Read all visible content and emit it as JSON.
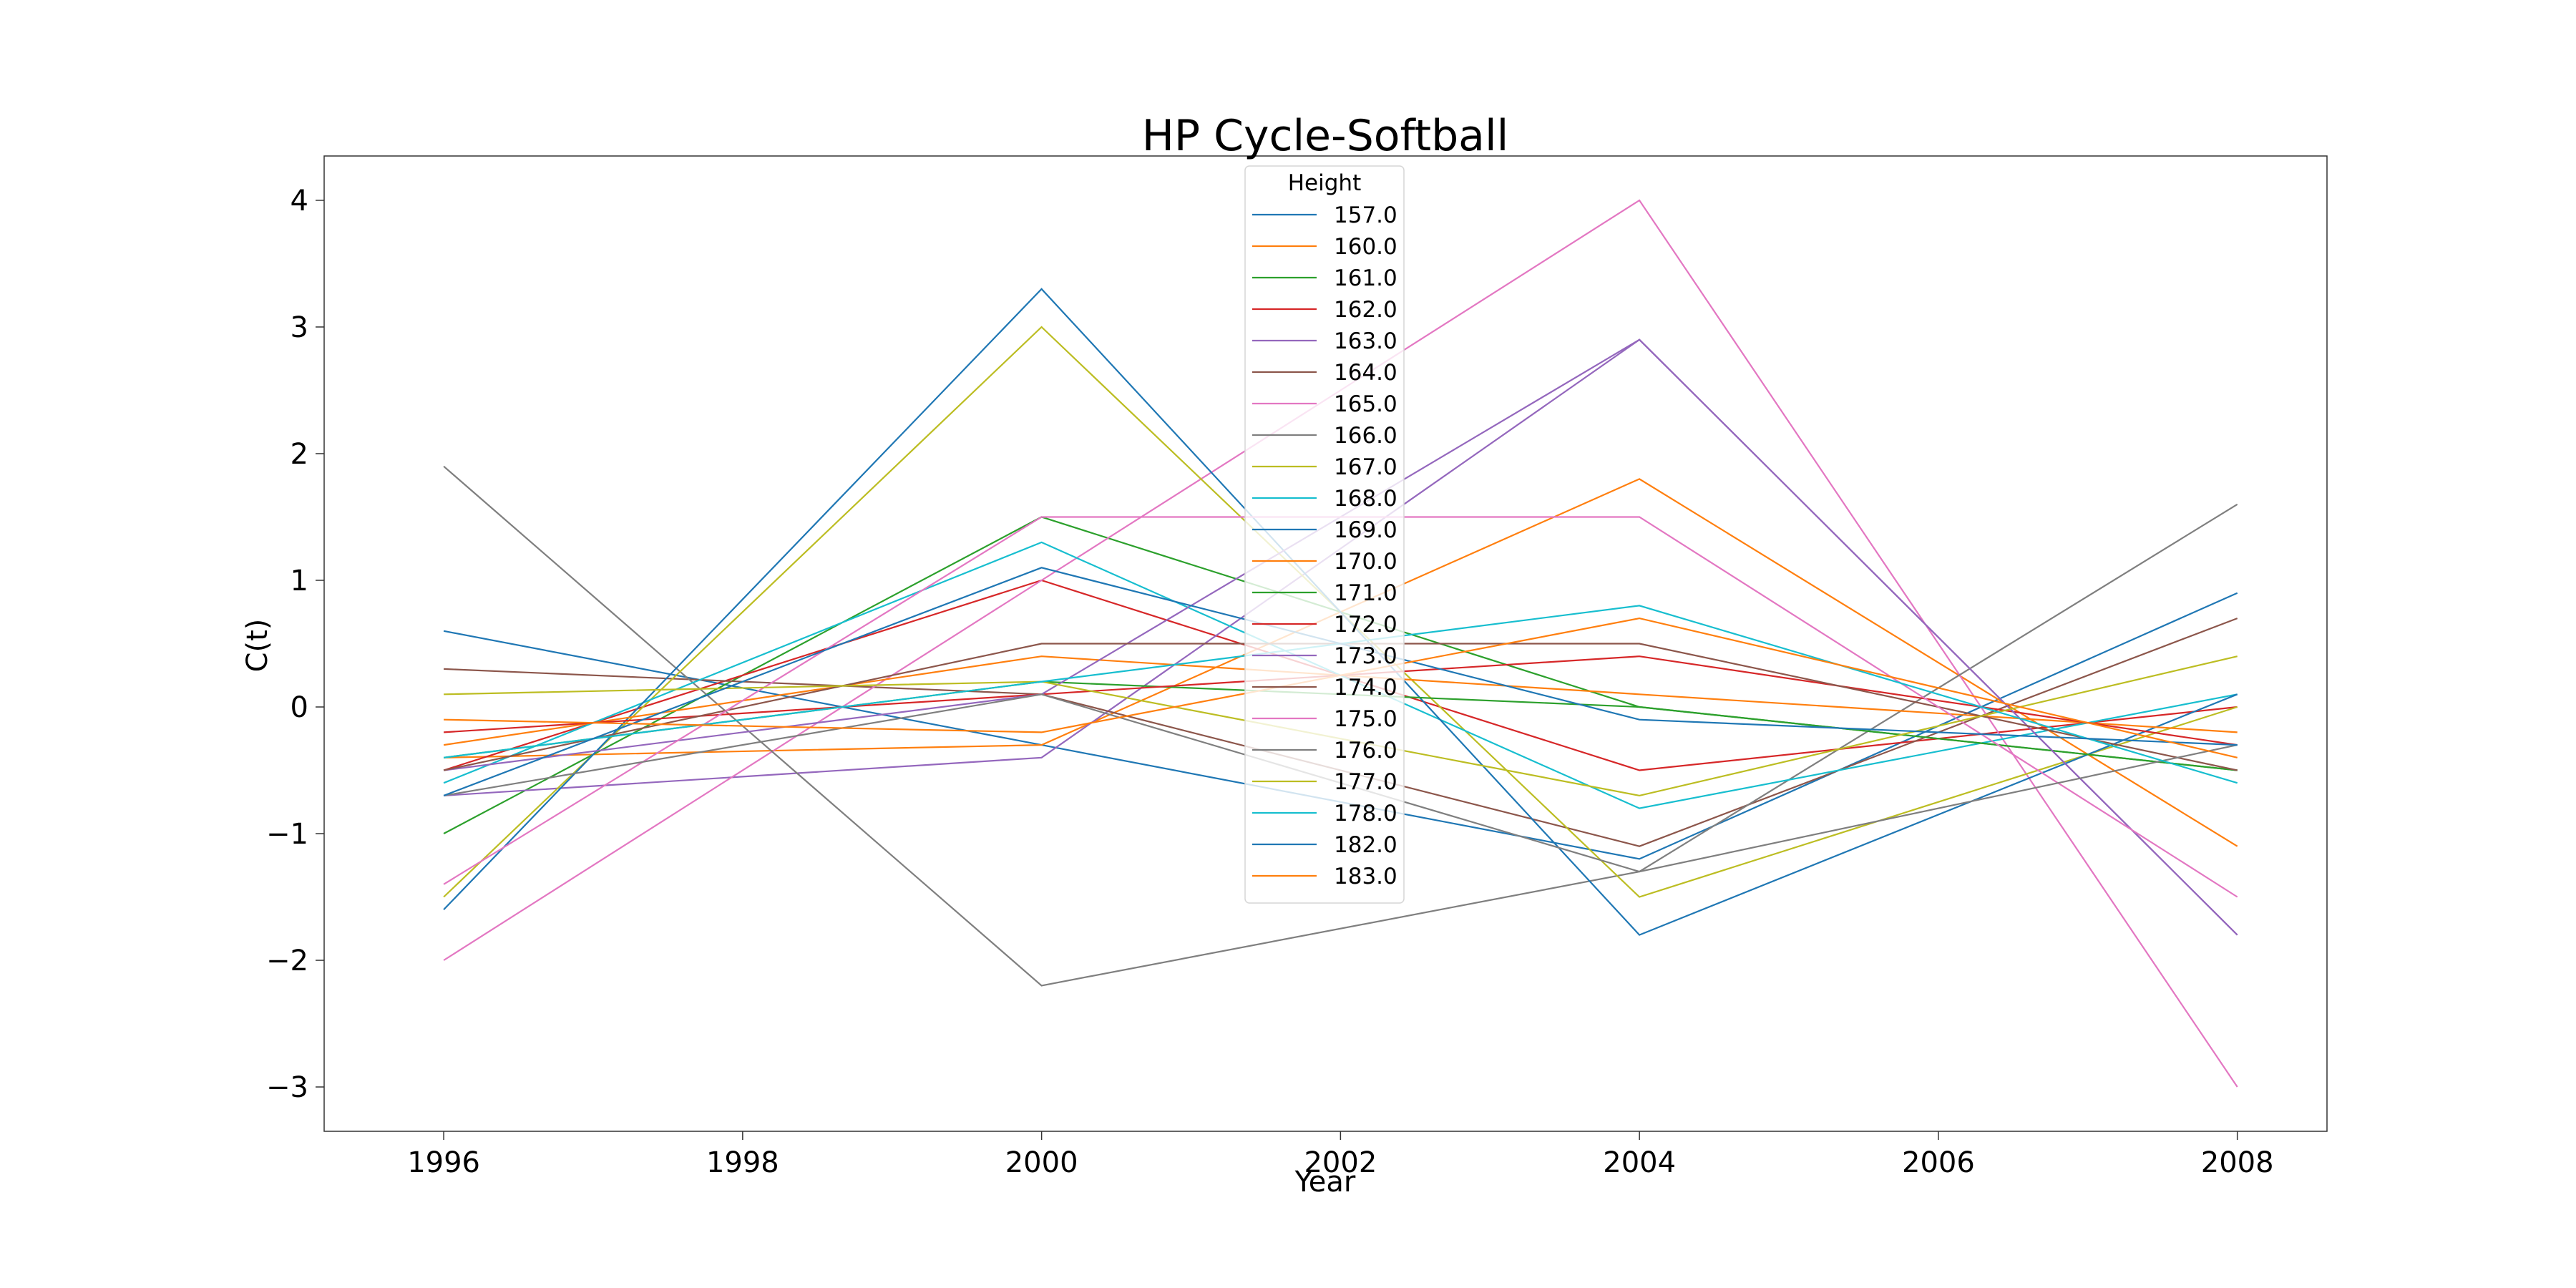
{
  "chart_data": {
    "type": "line",
    "title": "HP Cycle-Softball",
    "xlabel": "Year",
    "ylabel": "C(t)",
    "x": [
      1996,
      2000,
      2004,
      2008
    ],
    "xlim": [
      1995.2,
      2008.6
    ],
    "ylim": [
      -3.35,
      4.35
    ],
    "xticks": [
      1996,
      1998,
      2000,
      2002,
      2004,
      2006,
      2008
    ],
    "yticks": [
      -3,
      -2,
      -1,
      0,
      1,
      2,
      3,
      4
    ],
    "grid": false,
    "legend": {
      "title": "Height",
      "placement": "top-center"
    },
    "series": [
      {
        "name": "157.0",
        "color": "#1f77b4",
        "values": [
          0.6,
          -0.3,
          -1.2,
          0.9
        ]
      },
      {
        "name": "160.0",
        "color": "#ff7f0e",
        "values": [
          -0.4,
          -0.3,
          1.8,
          -1.1
        ]
      },
      {
        "name": "161.0",
        "color": "#2ca02c",
        "values": [
          -1.0,
          1.5,
          0.0,
          -0.5
        ]
      },
      {
        "name": "162.0",
        "color": "#d62728",
        "values": [
          -0.5,
          1.0,
          -0.5,
          0.0
        ]
      },
      {
        "name": "163.0",
        "color": "#9467bd",
        "values": [
          -0.7,
          -0.4,
          2.9,
          -1.8
        ]
      },
      {
        "name": "164.0",
        "color": "#8c564b",
        "values": [
          0.3,
          0.1,
          -1.1,
          0.7
        ]
      },
      {
        "name": "165.0",
        "color": "#e377c2",
        "values": [
          -2.0,
          1.0,
          4.0,
          -3.0
        ]
      },
      {
        "name": "166.0",
        "color": "#7f7f7f",
        "values": [
          1.9,
          -2.2,
          -1.3,
          1.6
        ]
      },
      {
        "name": "167.0",
        "color": "#bcbd22",
        "values": [
          -1.5,
          3.0,
          -1.5,
          0.0
        ]
      },
      {
        "name": "168.0",
        "color": "#17becf",
        "values": [
          -0.6,
          1.3,
          -0.8,
          0.1
        ]
      },
      {
        "name": "169.0",
        "color": "#1f77b4",
        "values": [
          -1.6,
          3.3,
          -1.8,
          0.1
        ]
      },
      {
        "name": "170.0",
        "color": "#ff7f0e",
        "values": [
          -0.3,
          0.4,
          0.1,
          -0.2
        ]
      },
      {
        "name": "171.0",
        "color": "#2ca02c",
        "values": [
          -0.4,
          0.2,
          0.0,
          -0.5
        ]
      },
      {
        "name": "172.0",
        "color": "#d62728",
        "values": [
          -0.2,
          0.1,
          0.4,
          -0.3
        ]
      },
      {
        "name": "173.0",
        "color": "#9467bd",
        "values": [
          -0.5,
          0.1,
          2.9,
          -1.8
        ]
      },
      {
        "name": "174.0",
        "color": "#8c564b",
        "values": [
          -0.5,
          0.5,
          0.5,
          -0.5
        ]
      },
      {
        "name": "175.0",
        "color": "#e377c2",
        "values": [
          -1.4,
          1.5,
          1.5,
          -1.5
        ]
      },
      {
        "name": "176.0",
        "color": "#7f7f7f",
        "values": [
          -0.7,
          0.1,
          -1.3,
          -0.3
        ]
      },
      {
        "name": "177.0",
        "color": "#bcbd22",
        "values": [
          0.1,
          0.2,
          -0.7,
          0.4
        ]
      },
      {
        "name": "178.0",
        "color": "#17becf",
        "values": [
          -0.4,
          0.2,
          0.8,
          -0.6
        ]
      },
      {
        "name": "182.0",
        "color": "#1f77b4",
        "values": [
          -0.7,
          1.1,
          -0.1,
          -0.3
        ]
      },
      {
        "name": "183.0",
        "color": "#ff7f0e",
        "values": [
          -0.1,
          -0.2,
          0.7,
          -0.4
        ]
      }
    ]
  }
}
